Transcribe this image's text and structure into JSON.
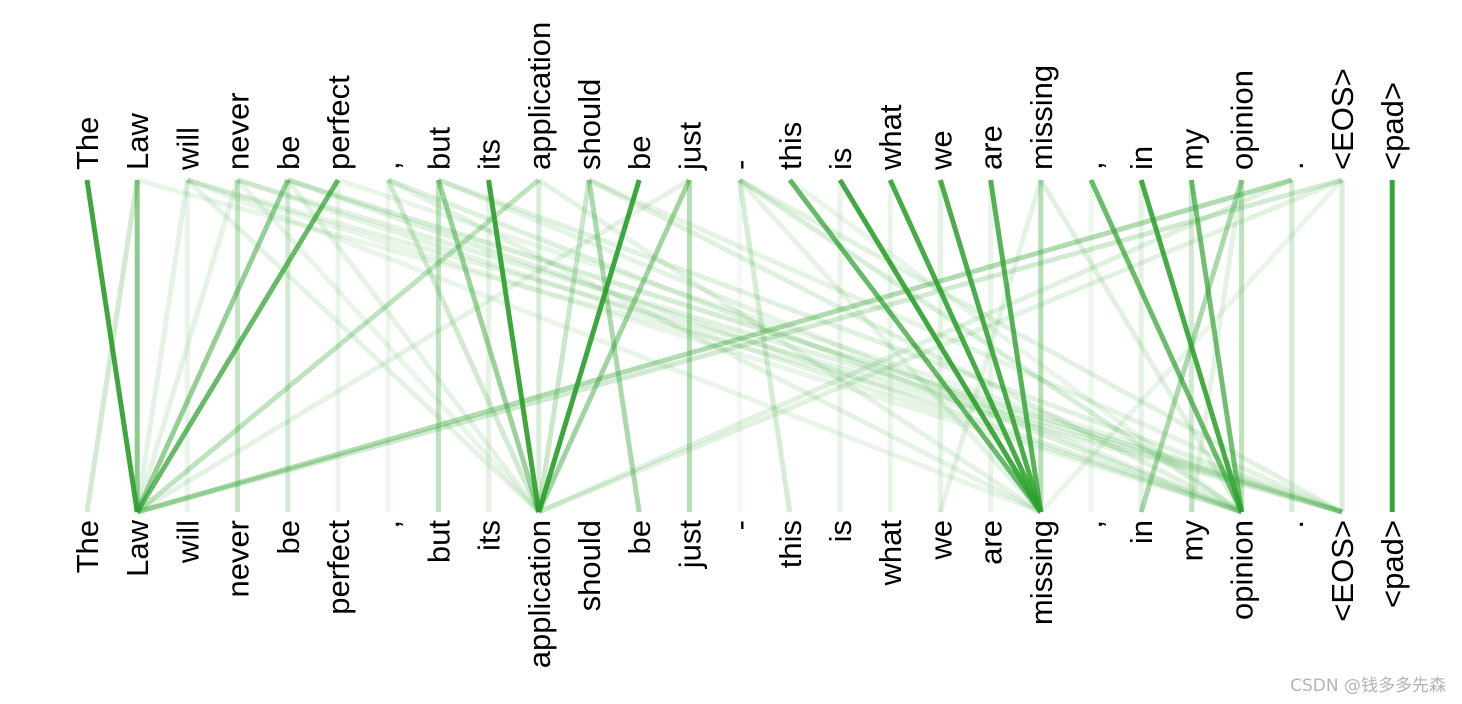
{
  "tokens": [
    "The",
    "Law",
    "will",
    "never",
    "be",
    "perfect",
    ",",
    "but",
    "its",
    "application",
    "should",
    "be",
    "just",
    "-",
    "this",
    "is",
    "what",
    "we",
    "are",
    "missing",
    ",",
    "in",
    "my",
    "opinion",
    ".",
    "<EOS>",
    "<pad>"
  ],
  "line_color": "#2ca02c",
  "attention": [
    {
      "from": 0,
      "to": 1,
      "weight": 0.92
    },
    {
      "from": 1,
      "to": 1,
      "weight": 0.55
    },
    {
      "from": 1,
      "to": 0,
      "weight": 0.22
    },
    {
      "from": 1,
      "to": 25,
      "weight": 0.1
    },
    {
      "from": 2,
      "to": 1,
      "weight": 0.12
    },
    {
      "from": 2,
      "to": 2,
      "weight": 0.1
    },
    {
      "from": 2,
      "to": 9,
      "weight": 0.12
    },
    {
      "from": 2,
      "to": 19,
      "weight": 0.1
    },
    {
      "from": 2,
      "to": 23,
      "weight": 0.1
    },
    {
      "from": 2,
      "to": 25,
      "weight": 0.12
    },
    {
      "from": 3,
      "to": 3,
      "weight": 0.28
    },
    {
      "from": 3,
      "to": 1,
      "weight": 0.12
    },
    {
      "from": 3,
      "to": 9,
      "weight": 0.1
    },
    {
      "from": 3,
      "to": 23,
      "weight": 0.12
    },
    {
      "from": 3,
      "to": 25,
      "weight": 0.14
    },
    {
      "from": 4,
      "to": 1,
      "weight": 0.5
    },
    {
      "from": 4,
      "to": 4,
      "weight": 0.22
    },
    {
      "from": 4,
      "to": 9,
      "weight": 0.12
    },
    {
      "from": 4,
      "to": 23,
      "weight": 0.15
    },
    {
      "from": 4,
      "to": 25,
      "weight": 0.2
    },
    {
      "from": 5,
      "to": 1,
      "weight": 0.72
    },
    {
      "from": 5,
      "to": 5,
      "weight": 0.1
    },
    {
      "from": 5,
      "to": 25,
      "weight": 0.1
    },
    {
      "from": 6,
      "to": 9,
      "weight": 0.22
    },
    {
      "from": 6,
      "to": 23,
      "weight": 0.16
    },
    {
      "from": 6,
      "to": 19,
      "weight": 0.12
    },
    {
      "from": 6,
      "to": 6,
      "weight": 0.08
    },
    {
      "from": 7,
      "to": 9,
      "weight": 0.48
    },
    {
      "from": 7,
      "to": 7,
      "weight": 0.3
    },
    {
      "from": 7,
      "to": 25,
      "weight": 0.15
    },
    {
      "from": 7,
      "to": 23,
      "weight": 0.12
    },
    {
      "from": 8,
      "to": 9,
      "weight": 0.92
    },
    {
      "from": 8,
      "to": 8,
      "weight": 0.12
    },
    {
      "from": 9,
      "to": 9,
      "weight": 0.18
    },
    {
      "from": 9,
      "to": 1,
      "weight": 0.3
    },
    {
      "from": 9,
      "to": 19,
      "weight": 0.12
    },
    {
      "from": 10,
      "to": 9,
      "weight": 0.25
    },
    {
      "from": 10,
      "to": 11,
      "weight": 0.4
    },
    {
      "from": 10,
      "to": 23,
      "weight": 0.15
    },
    {
      "from": 10,
      "to": 25,
      "weight": 0.12
    },
    {
      "from": 11,
      "to": 9,
      "weight": 0.92
    },
    {
      "from": 12,
      "to": 12,
      "weight": 0.35
    },
    {
      "from": 12,
      "to": 9,
      "weight": 0.45
    },
    {
      "from": 12,
      "to": 1,
      "weight": 0.12
    },
    {
      "from": 13,
      "to": 14,
      "weight": 0.2
    },
    {
      "from": 13,
      "to": 19,
      "weight": 0.12
    },
    {
      "from": 13,
      "to": 23,
      "weight": 0.18
    },
    {
      "from": 13,
      "to": 25,
      "weight": 0.14
    },
    {
      "from": 13,
      "to": 13,
      "weight": 0.06
    },
    {
      "from": 14,
      "to": 19,
      "weight": 0.72
    },
    {
      "from": 14,
      "to": 23,
      "weight": 0.1
    },
    {
      "from": 15,
      "to": 19,
      "weight": 0.9
    },
    {
      "from": 15,
      "to": 15,
      "weight": 0.1
    },
    {
      "from": 16,
      "to": 19,
      "weight": 0.88
    },
    {
      "from": 16,
      "to": 16,
      "weight": 0.1
    },
    {
      "from": 17,
      "to": 19,
      "weight": 0.85
    },
    {
      "from": 17,
      "to": 17,
      "weight": 0.12
    },
    {
      "from": 18,
      "to": 19,
      "weight": 0.8
    },
    {
      "from": 18,
      "to": 18,
      "weight": 0.1
    },
    {
      "from": 19,
      "to": 19,
      "weight": 0.35
    },
    {
      "from": 19,
      "to": 17,
      "weight": 0.12
    },
    {
      "from": 19,
      "to": 23,
      "weight": 0.15
    },
    {
      "from": 20,
      "to": 23,
      "weight": 0.7
    },
    {
      "from": 20,
      "to": 20,
      "weight": 0.08
    },
    {
      "from": 21,
      "to": 23,
      "weight": 0.88
    },
    {
      "from": 21,
      "to": 21,
      "weight": 0.12
    },
    {
      "from": 22,
      "to": 23,
      "weight": 0.68
    },
    {
      "from": 22,
      "to": 22,
      "weight": 0.22
    },
    {
      "from": 23,
      "to": 23,
      "weight": 0.3
    },
    {
      "from": 23,
      "to": 21,
      "weight": 0.4
    },
    {
      "from": 23,
      "to": 22,
      "weight": 0.12
    },
    {
      "from": 24,
      "to": 1,
      "weight": 0.38
    },
    {
      "from": 24,
      "to": 24,
      "weight": 0.2
    },
    {
      "from": 24,
      "to": 9,
      "weight": 0.15
    },
    {
      "from": 25,
      "to": 1,
      "weight": 0.22
    },
    {
      "from": 25,
      "to": 9,
      "weight": 0.14
    },
    {
      "from": 25,
      "to": 25,
      "weight": 0.18
    },
    {
      "from": 25,
      "to": 19,
      "weight": 0.1
    },
    {
      "from": 26,
      "to": 26,
      "weight": 0.95
    }
  ],
  "watermark": "CSDN @钱多多先森"
}
